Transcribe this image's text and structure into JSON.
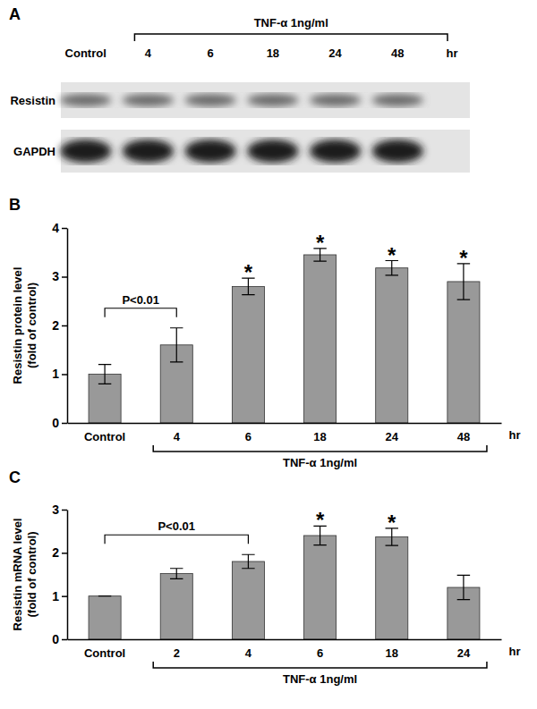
{
  "blot": {
    "panel": "A",
    "treatment": "TNF-α 1ng/ml",
    "lanes": [
      "Control",
      "4",
      "6",
      "18",
      "24",
      "48"
    ],
    "unit": "hr",
    "rows": [
      "Resistin",
      "GAPDH"
    ]
  },
  "chart_data": [
    {
      "type": "bar",
      "panel": "B",
      "y_label": [
        "Resistin protein level",
        "(fold of control)"
      ],
      "x_label": "hr",
      "categories": [
        "Control",
        "4",
        "6",
        "18",
        "24",
        "48"
      ],
      "values": [
        1.0,
        1.6,
        2.8,
        3.45,
        3.18,
        2.9
      ],
      "errors": [
        0.2,
        0.35,
        0.17,
        0.13,
        0.15,
        0.37
      ],
      "color": "#999999",
      "ylim": [
        0,
        4
      ],
      "yticks": [
        0,
        1,
        2,
        3,
        4
      ],
      "annotations": [
        {
          "text": "P<0.01",
          "from": "Control",
          "to": "4"
        },
        {
          "text": "*",
          "category": "6"
        },
        {
          "text": "*",
          "category": "18"
        },
        {
          "text": "*",
          "category": "24"
        },
        {
          "text": "*",
          "category": "48"
        }
      ],
      "treatment": {
        "text": "TNF-α 1ng/ml",
        "from": "4",
        "to": "48"
      }
    },
    {
      "type": "bar",
      "panel": "C",
      "y_label": [
        "Resistin mRNA level",
        "(fold of control)"
      ],
      "x_label": "hr",
      "categories": [
        "Control",
        "2",
        "4",
        "6",
        "18",
        "24"
      ],
      "values": [
        1.0,
        1.52,
        1.8,
        2.4,
        2.37,
        1.2
      ],
      "errors": [
        0,
        0.12,
        0.16,
        0.22,
        0.2,
        0.28
      ],
      "color": "#999999",
      "ylim": [
        0,
        3
      ],
      "yticks": [
        0,
        1,
        2,
        3
      ],
      "annotations": [
        {
          "text": "P<0.01",
          "from": "Control",
          "to": "4"
        },
        {
          "text": "*",
          "category": "6"
        },
        {
          "text": "*",
          "category": "18"
        }
      ],
      "treatment": {
        "text": "TNF-α 1ng/ml",
        "from": "2",
        "to": "24"
      }
    }
  ]
}
